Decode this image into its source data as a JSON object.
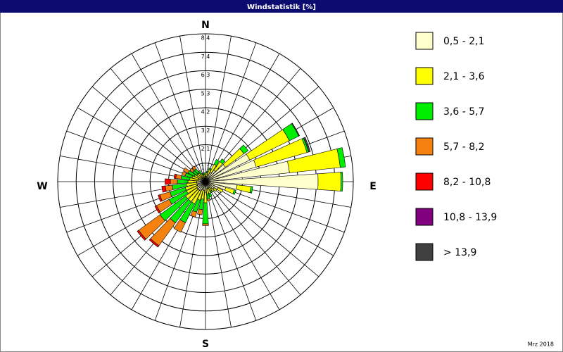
{
  "chart_data": {
    "type": "windrose",
    "title": "Windstatistik [%]",
    "footer": "Mrz 2018",
    "compass_labels": [
      "N",
      "E",
      "S",
      "W"
    ],
    "x": [
      0,
      10,
      20,
      30,
      40,
      50,
      60,
      70,
      80,
      90,
      100,
      110,
      120,
      130,
      140,
      150,
      160,
      170,
      180,
      190,
      200,
      210,
      220,
      230,
      240,
      250,
      260,
      270,
      280,
      290,
      300,
      310,
      320,
      330,
      340,
      350
    ],
    "ylim": [
      0,
      8.4
    ],
    "yticks": [
      {
        "value": 1.05,
        "label": "1,1"
      },
      {
        "value": 2.1,
        "label": "2,1"
      },
      {
        "value": 3.15,
        "label": "3,2"
      },
      {
        "value": 4.2,
        "label": "4,2"
      },
      {
        "value": 5.25,
        "label": "5,3"
      },
      {
        "value": 6.3,
        "label": "6,3"
      },
      {
        "value": 7.35,
        "label": "7,4"
      },
      {
        "value": 8.4,
        "label": "8,4"
      }
    ],
    "series": [
      {
        "name": "0,5 - 2,1",
        "color": "#ffffcc",
        "values": [
          0.3,
          0.3,
          0.4,
          0.6,
          0.8,
          1.4,
          2.8,
          3.0,
          4.8,
          6.4,
          1.8,
          1.2,
          0.8,
          0.6,
          0.5,
          0.4,
          0.4,
          0.4,
          0.6,
          0.5,
          0.5,
          0.6,
          0.6,
          0.6,
          0.5,
          0.5,
          0.5,
          0.5,
          0.4,
          0.4,
          0.3,
          0.3,
          0.3,
          0.2,
          0.2,
          0.2
        ]
      },
      {
        "name": "2,1 - 3,6",
        "color": "#ffff00",
        "values": [
          0.2,
          0.2,
          0.3,
          0.5,
          0.6,
          1.3,
          2.5,
          3.0,
          2.9,
          1.3,
          0.8,
          0.5,
          0.3,
          0.2,
          0.2,
          0.2,
          0.3,
          0.3,
          0.6,
          0.5,
          0.6,
          0.8,
          0.8,
          0.8,
          0.7,
          0.7,
          0.6,
          0.5,
          0.5,
          0.4,
          0.4,
          0.3,
          0.3,
          0.3,
          0.2,
          0.2
        ]
      },
      {
        "name": "3,6 - 5,7",
        "color": "#00ee00",
        "values": [
          0,
          0.1,
          0.1,
          0.3,
          0.2,
          0.3,
          0.6,
          0.1,
          0.3,
          0.1,
          0.1,
          0.1,
          0,
          0,
          0,
          0.1,
          0.2,
          0.3,
          1.2,
          0.6,
          0.7,
          1.2,
          1.5,
          1.8,
          1.1,
          0.9,
          0.8,
          0.6,
          0.5,
          0.4,
          0.4,
          0.3,
          0.3,
          0.2,
          0.1,
          0.1
        ]
      },
      {
        "name": "5,7 - 8,2",
        "color": "#f5820f",
        "values": [
          0,
          0,
          0,
          0,
          0,
          0,
          0,
          0,
          0,
          0,
          0,
          0,
          0,
          0,
          0,
          0,
          0,
          0.1,
          0.1,
          0.3,
          0.3,
          0.6,
          1.6,
          1.5,
          0.8,
          0.6,
          0.4,
          0.4,
          0.3,
          0.2,
          0.3,
          0.2,
          0.2,
          0,
          0,
          0
        ]
      },
      {
        "name": "8,2 - 10,8",
        "color": "#ff0000",
        "values": [
          0,
          0,
          0,
          0,
          0,
          0,
          0,
          0,
          0,
          0,
          0,
          0,
          0,
          0,
          0,
          0,
          0,
          0,
          0,
          0,
          0,
          0,
          0.1,
          0.1,
          0.1,
          0.1,
          0.2,
          0.3,
          0.1,
          0,
          0,
          0,
          0,
          0,
          0,
          0
        ]
      },
      {
        "name": "10,8 - 13,9",
        "color": "#800080",
        "values": [
          0,
          0,
          0,
          0,
          0,
          0,
          0,
          0,
          0,
          0,
          0,
          0,
          0,
          0,
          0,
          0,
          0,
          0,
          0,
          0,
          0,
          0,
          0,
          0,
          0,
          0,
          0,
          0,
          0,
          0,
          0,
          0,
          0,
          0,
          0,
          0
        ]
      },
      {
        "name": "> 13,9",
        "color": "#404040",
        "values": [
          0,
          0,
          0,
          0,
          0,
          0,
          0.05,
          0.1,
          0,
          0,
          0,
          0,
          0,
          0,
          0,
          0,
          0,
          0,
          0,
          0,
          0,
          0,
          0,
          0,
          0,
          0,
          0,
          0,
          0,
          0,
          0,
          0,
          0,
          0,
          0,
          0
        ]
      }
    ]
  }
}
